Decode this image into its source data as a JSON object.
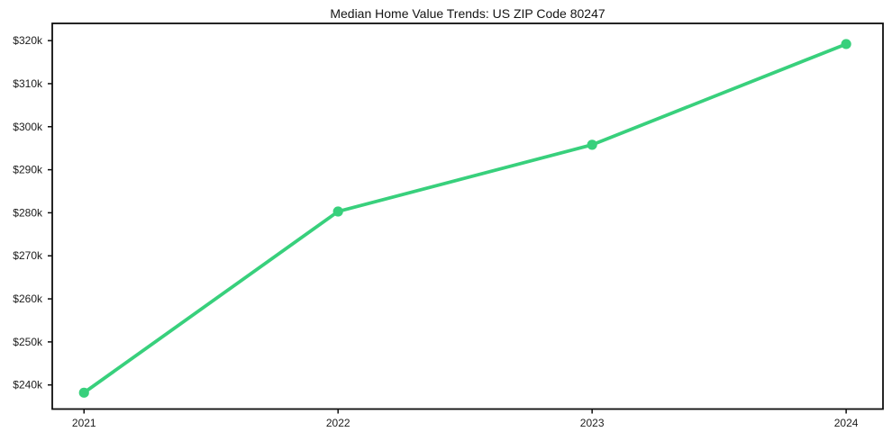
{
  "chart_data": {
    "type": "line",
    "title": "Median Home Value Trends: US ZIP Code 80247",
    "x": [
      2021,
      2022,
      2023,
      2024
    ],
    "series": [
      {
        "name": "Median Home Value",
        "values": [
          238200,
          280300,
          295800,
          319200
        ]
      }
    ],
    "x_tick_labels": [
      "2021",
      "2022",
      "2023",
      "2024"
    ],
    "y_tick_values": [
      240000,
      250000,
      260000,
      270000,
      280000,
      290000,
      300000,
      310000,
      320000
    ],
    "y_tick_labels": [
      "$240k",
      "$250k",
      "$260k",
      "$270k",
      "$280k",
      "$290k",
      "$300k",
      "$310k",
      "$320k"
    ],
    "xlim": [
      2020.875,
      2024.145
    ],
    "ylim": [
      234400,
      324000
    ],
    "xlabel": "",
    "ylabel": "",
    "grid": false,
    "legend": false,
    "line_color": "#38d07c",
    "marker": "circle",
    "marker_color": "#38d07c",
    "axis_color": "#0d0d0d",
    "tick_label_color": "#1c1c1c",
    "background_color": "#ffffff"
  }
}
